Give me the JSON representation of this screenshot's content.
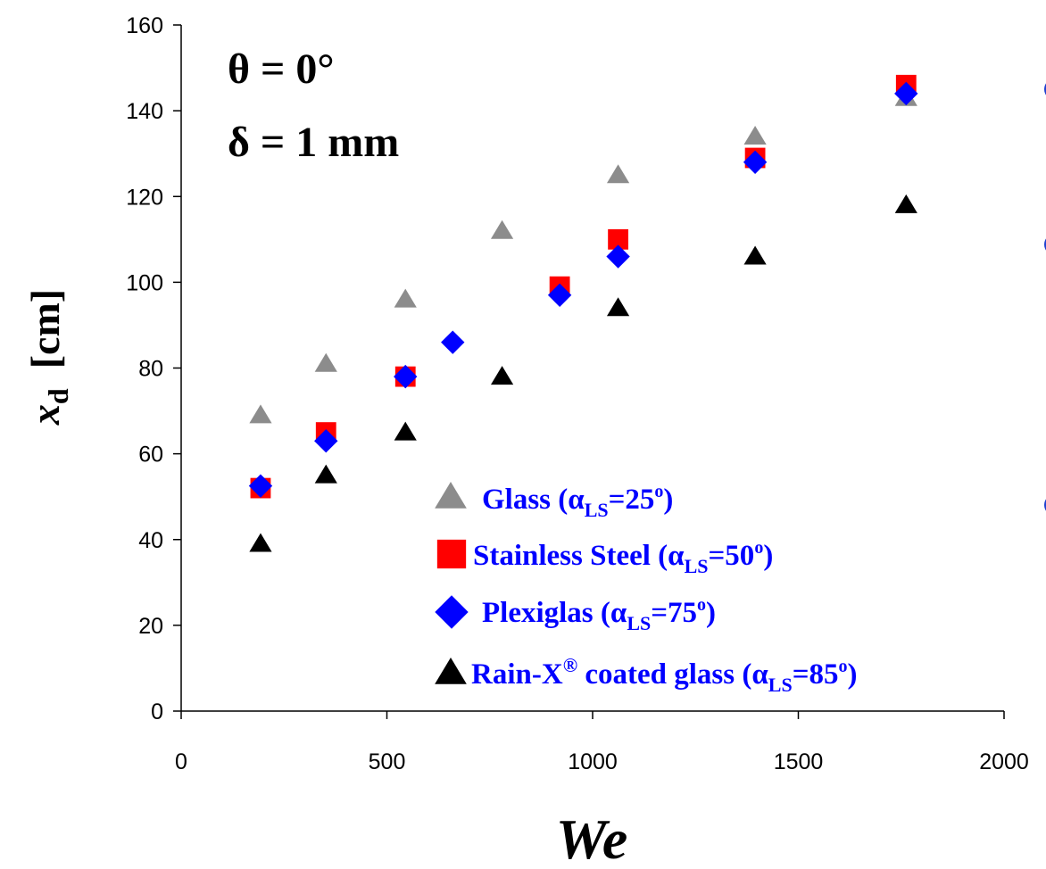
{
  "chart_data": {
    "type": "scatter",
    "title": "",
    "xlabel": "We",
    "ylabel": "x",
    "ylabel_subscript": "d",
    "ylabel_unit": "[cm]",
    "xlim": [
      0,
      2000
    ],
    "ylim": [
      0,
      160
    ],
    "x_ticks": [
      0,
      500,
      1000,
      1500,
      2000
    ],
    "y_ticks": [
      0,
      20,
      40,
      60,
      80,
      100,
      120,
      140,
      160
    ],
    "grid": false,
    "legend_position": "bottom-right",
    "annotations": [
      {
        "name": "theta",
        "text": "θ = 0°"
      },
      {
        "name": "delta",
        "text": "δ = 1 mm"
      }
    ],
    "colors": {
      "legend_text": "#0000ff",
      "axis": "#000000"
    },
    "series": [
      {
        "name": "Glass",
        "label": {
          "pre": "Glass (α",
          "sub": "LS",
          "post": "=25",
          "sup": "o",
          "end": ")"
        },
        "marker": "triangle",
        "color": "#8c8c8c",
        "points": [
          [
            193,
            69
          ],
          [
            352,
            81
          ],
          [
            545,
            96
          ],
          [
            780,
            112
          ],
          [
            1062,
            125
          ],
          [
            1395,
            134
          ],
          [
            1762,
            143
          ]
        ]
      },
      {
        "name": "Stainless Steel",
        "label": {
          "pre": "Stainless Steel (α",
          "sub": "LS",
          "post": "=50",
          "sup": "o",
          "end": ")"
        },
        "marker": "square",
        "color": "#ff0000",
        "points": [
          [
            193,
            52
          ],
          [
            352,
            65
          ],
          [
            545,
            78
          ],
          [
            920,
            99
          ],
          [
            1062,
            110
          ],
          [
            1395,
            129
          ],
          [
            1762,
            146
          ]
        ]
      },
      {
        "name": "Plexiglas",
        "label": {
          "pre": "Plexiglas (α",
          "sub": "LS",
          "post": "=75",
          "sup": "o",
          "end": ")"
        },
        "marker": "diamond",
        "color": "#0000ff",
        "points": [
          [
            193,
            52.5
          ],
          [
            352,
            63
          ],
          [
            545,
            78
          ],
          [
            660,
            86
          ],
          [
            920,
            97
          ],
          [
            1062,
            106
          ],
          [
            1395,
            128
          ],
          [
            1762,
            144
          ]
        ]
      },
      {
        "name": "Rain-X® coated glass",
        "label": {
          "pre": "Rain-X",
          "reg": "®",
          "pre2": " coated glass (α",
          "sub": "LS",
          "post": "=85",
          "sup": "o",
          "end": ")"
        },
        "marker": "triangle",
        "color": "#000000",
        "points": [
          [
            193,
            39
          ],
          [
            352,
            55
          ],
          [
            545,
            65
          ],
          [
            780,
            78
          ],
          [
            1062,
            94
          ],
          [
            1395,
            106
          ],
          [
            1762,
            118
          ]
        ]
      }
    ]
  }
}
